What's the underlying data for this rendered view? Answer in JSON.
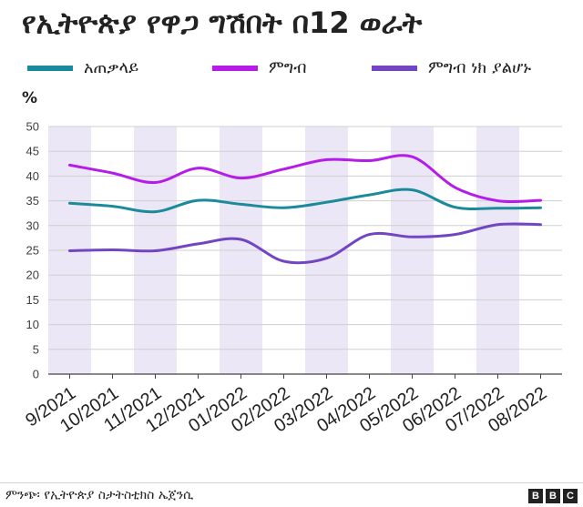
{
  "header": {
    "title": "የኢትዮጵያ የዋጋ ግሽበት  በ12 ወራት"
  },
  "footer": {
    "source": "ምንጭ፡ የኢትዮጵያ ስታትስቲክስ ኤጀንሲ",
    "logo_letters": [
      "B",
      "B",
      "C"
    ]
  },
  "chart_data": {
    "type": "line",
    "title": "የኢትዮጵያ የዋጋ ግሽበት  በ12 ወራት",
    "xlabel": "",
    "ylabel": "%",
    "ylim": [
      0,
      50
    ],
    "yticks": [
      0,
      5,
      10,
      15,
      20,
      25,
      30,
      35,
      40,
      45,
      50
    ],
    "grid": true,
    "legend_position": "top",
    "categories": [
      "9/2021",
      "10/2021",
      "11/2021",
      "12/2021",
      "01/2022",
      "02/2022",
      "03/2022",
      "04/2022",
      "05/2022",
      "06/2022",
      "07/2022",
      "08/2022"
    ],
    "shaded_band_color": "#ece7f7",
    "series": [
      {
        "name": "አጠቃላይ",
        "color": "#1b8a9a",
        "values": [
          34.5,
          33.9,
          32.8,
          35.1,
          34.3,
          33.6,
          34.7,
          36.2,
          37.2,
          33.7,
          33.5,
          33.6
        ]
      },
      {
        "name": "ምግብ",
        "color": "#b51ce8",
        "values": [
          42.2,
          40.6,
          38.7,
          41.6,
          39.6,
          41.4,
          43.3,
          43.1,
          43.9,
          37.7,
          35.0,
          35.1
        ]
      },
      {
        "name": "ምግብ ነክ ያልሆኑ",
        "color": "#7246c3",
        "values": [
          24.9,
          25.1,
          24.9,
          26.3,
          27.2,
          22.8,
          23.4,
          28.2,
          27.7,
          28.2,
          30.2,
          30.2
        ]
      }
    ]
  }
}
